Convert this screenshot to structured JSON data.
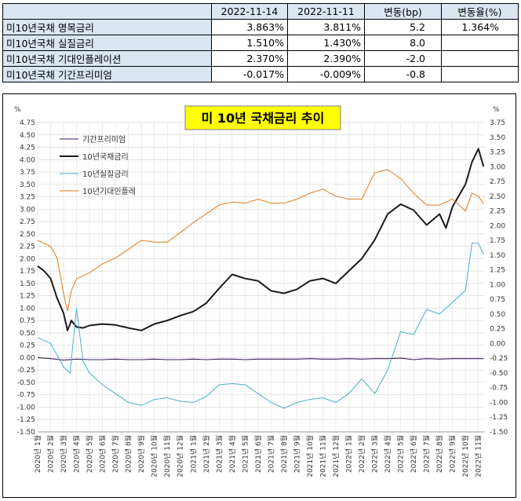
{
  "table": {
    "headers": [
      "",
      "2022-11-14",
      "2022-11-11",
      "변동(bp)",
      "변동율(%)"
    ],
    "rows": [
      {
        "name": "미10년국채 명목금리",
        "v1": "3.863%",
        "v2": "3.811%",
        "bp": "5.2",
        "pct": "1.364%"
      },
      {
        "name": "미10년국채 실질금리",
        "v1": "1.510%",
        "v2": "1.430%",
        "bp": "8.0",
        "pct": ""
      },
      {
        "name": "미10년국채 기대인플레이션",
        "v1": "2.370%",
        "v2": "2.390%",
        "bp": "-2.0",
        "pct": ""
      },
      {
        "name": "미10년국채 기간프리미엄",
        "v1": "-0.017%",
        "v2": "-0.009%",
        "bp": "-0.8",
        "pct": ""
      }
    ]
  },
  "colors": {
    "term_premium": "#3d1f5c",
    "nominal": "#1a1a1a",
    "real": "#4aaec6",
    "inflation": "#e0781c",
    "title_bg": "#ffff00",
    "grid": "#d9d9d9",
    "header_bg": "#dce6f1"
  },
  "chart_data": {
    "type": "line",
    "title": "미 10년 국채금리 추이",
    "ylabel_left": "%",
    "ylabel_right": "%",
    "ylim_left": [
      -1.5,
      4.75
    ],
    "ylim_right": [
      -1.5,
      3.75
    ],
    "yticks_left": [
      "4.75",
      "4.50",
      "4.25",
      "4.00",
      "3.75",
      "3.50",
      "3.25",
      "3.00",
      "2.75",
      "2.50",
      "2.25",
      "2.00",
      "1.75",
      "1.50",
      "1.25",
      "1.00",
      "0.75",
      "0.50",
      "0.25",
      "0.00",
      "-0.25",
      "-0.50",
      "-0.75",
      "-1.00",
      "-1.25",
      "-1.50"
    ],
    "yticks_right": [
      "3.75",
      "3.50",
      "3.25",
      "3.00",
      "2.75",
      "2.50",
      "2.25",
      "2.00",
      "1.75",
      "1.50",
      "1.25",
      "1.00",
      "0.75",
      "0.50",
      "0.25",
      "0.00",
      "-0.25",
      "-0.50",
      "-0.75",
      "-1.00",
      "-1.25",
      "-1.50"
    ],
    "xticks": [
      "2020년 1월",
      "2020년 2월",
      "2020년 3월",
      "2020년 4월",
      "2020년 5월",
      "2020년 6월",
      "2020년 7월",
      "2020년 8월",
      "2020년 9월",
      "2020년 10월",
      "2020년 11월",
      "2020년 12월",
      "2021년 1월",
      "2021년 2월",
      "2021년 3월",
      "2021년 4월",
      "2021년 5월",
      "2021년 6월",
      "2021년 7월",
      "2021년 8월",
      "2021년 9월",
      "2021년 10월",
      "2021년 11월",
      "2021년 12월",
      "2022년 1월",
      "2022년 2월",
      "2022년 3월",
      "2022년 4월",
      "2022년 5월",
      "2022년 6월",
      "2022년 7월",
      "2022년 8월",
      "2022년 9월",
      "2022년 10월",
      "2022년 11월"
    ],
    "legend_position": "top-left",
    "grid": true,
    "series": [
      {
        "name": "기간프리미엄",
        "axis": "left",
        "x": [
          0,
          1,
          2,
          3,
          4,
          5,
          6,
          7,
          8,
          9,
          10,
          11,
          12,
          13,
          14,
          15,
          16,
          17,
          18,
          19,
          20,
          21,
          22,
          23,
          24,
          25,
          26,
          27,
          28,
          29,
          30,
          31,
          32,
          33,
          34.4
        ],
        "values": [
          0.0,
          -0.02,
          -0.05,
          -0.03,
          -0.04,
          -0.04,
          -0.03,
          -0.04,
          -0.04,
          -0.03,
          -0.04,
          -0.04,
          -0.03,
          -0.04,
          -0.03,
          -0.03,
          -0.04,
          -0.03,
          -0.03,
          -0.03,
          -0.03,
          -0.02,
          -0.03,
          -0.03,
          -0.02,
          -0.03,
          -0.02,
          -0.02,
          -0.01,
          -0.04,
          -0.02,
          -0.03,
          -0.02,
          -0.02,
          -0.02
        ]
      },
      {
        "name": "10년국채금리",
        "axis": "left",
        "x": [
          0,
          0.5,
          1,
          1.5,
          2,
          2.3,
          2.6,
          3,
          3.5,
          4,
          5,
          6,
          7,
          8,
          9,
          10,
          11,
          12,
          13,
          14,
          15,
          16,
          17,
          18,
          19,
          20,
          21,
          22,
          23,
          24,
          25,
          26,
          27,
          28,
          29,
          30,
          31,
          31.5,
          32,
          33,
          33.5,
          34,
          34.4
        ],
        "values": [
          1.85,
          1.75,
          1.6,
          1.2,
          0.9,
          0.55,
          0.75,
          0.62,
          0.6,
          0.65,
          0.68,
          0.66,
          0.6,
          0.55,
          0.68,
          0.75,
          0.85,
          0.93,
          1.1,
          1.4,
          1.68,
          1.6,
          1.55,
          1.35,
          1.3,
          1.38,
          1.55,
          1.6,
          1.5,
          1.75,
          2.0,
          2.38,
          2.9,
          3.1,
          2.98,
          2.68,
          2.9,
          2.62,
          3.05,
          3.5,
          3.95,
          4.22,
          3.86
        ]
      },
      {
        "name": "10년실질금리",
        "axis": "right",
        "x": [
          0,
          1,
          2,
          2.5,
          3,
          3.5,
          4,
          5,
          6,
          7,
          8,
          9,
          10,
          11,
          12,
          13,
          14,
          15,
          16,
          17,
          18,
          19,
          20,
          21,
          22,
          23,
          24,
          25,
          26,
          27,
          28,
          29,
          30,
          31,
          32,
          33,
          33.5,
          34,
          34.4
        ],
        "values": [
          0.1,
          0.0,
          -0.4,
          -0.5,
          0.6,
          -0.3,
          -0.5,
          -0.7,
          -0.85,
          -1.0,
          -1.05,
          -0.95,
          -0.92,
          -0.98,
          -1.0,
          -0.9,
          -0.7,
          -0.68,
          -0.7,
          -0.85,
          -1.0,
          -1.1,
          -1.0,
          -0.95,
          -0.92,
          -1.0,
          -0.85,
          -0.6,
          -0.85,
          -0.45,
          0.2,
          0.15,
          0.58,
          0.5,
          0.7,
          0.9,
          1.7,
          1.7,
          1.51
        ]
      },
      {
        "name": "10년기대인플레",
        "axis": "right",
        "x": [
          0,
          1,
          1.5,
          2,
          2.3,
          2.6,
          3,
          4,
          5,
          6,
          7,
          8,
          9,
          10,
          11,
          12,
          13,
          14,
          15,
          16,
          17,
          18,
          19,
          20,
          21,
          22,
          23,
          24,
          25,
          26,
          27,
          28,
          29,
          30,
          31,
          32,
          33,
          33.5,
          34,
          34.4
        ],
        "values": [
          1.75,
          1.65,
          1.45,
          0.85,
          0.55,
          0.9,
          1.1,
          1.2,
          1.35,
          1.45,
          1.6,
          1.75,
          1.72,
          1.72,
          1.88,
          2.05,
          2.2,
          2.35,
          2.4,
          2.38,
          2.45,
          2.38,
          2.38,
          2.45,
          2.55,
          2.62,
          2.5,
          2.45,
          2.45,
          2.9,
          2.95,
          2.8,
          2.55,
          2.35,
          2.35,
          2.45,
          2.25,
          2.55,
          2.5,
          2.37
        ]
      }
    ]
  }
}
